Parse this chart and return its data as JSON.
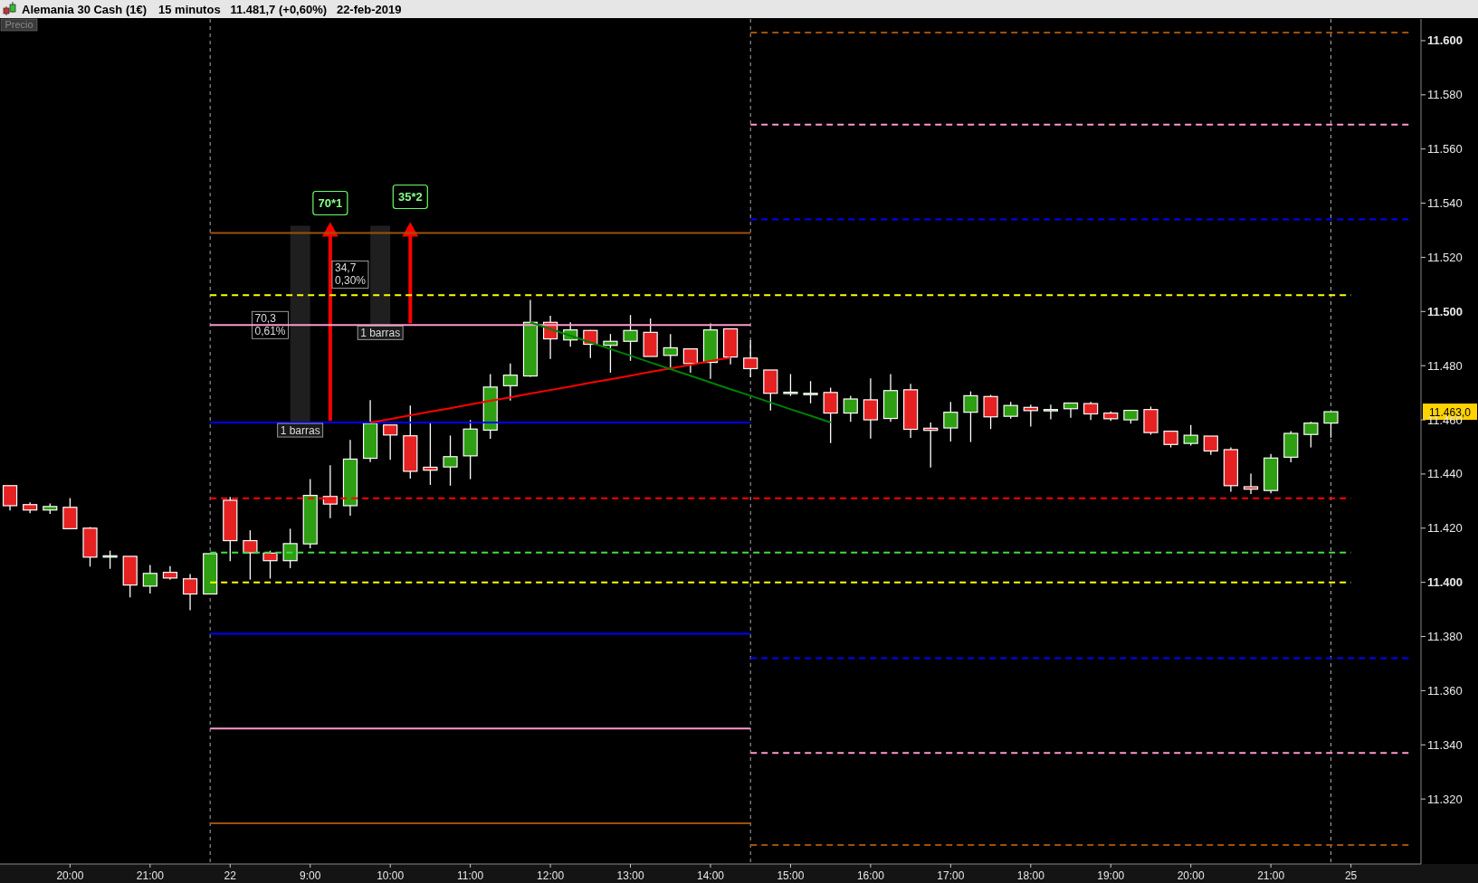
{
  "chart_data": {
    "type": "candlestick",
    "title": "Alemania 30 Cash (1€)",
    "subtitle": "15 minutos   11.481,7 (+0,60%)   22-feb-2019",
    "categories": [
      null,
      null,
      null,
      "20:00",
      null,
      null,
      null,
      "21:00",
      null,
      null,
      null,
      "22",
      null,
      null,
      null,
      "9:00",
      null,
      null,
      null,
      "10:00",
      null,
      null,
      null,
      "11:00",
      null,
      null,
      null,
      "12:00",
      null,
      null,
      null,
      "13:00",
      null,
      null,
      null,
      "14:00",
      null,
      null,
      null,
      "15:00",
      null,
      null,
      null,
      "16:00",
      null,
      null,
      null,
      "17:00",
      null,
      null,
      null,
      "18:00",
      null,
      null,
      null,
      "19:00",
      null,
      null,
      null,
      "20:00",
      null,
      null,
      null,
      "21:00",
      null,
      null,
      null,
      "25",
      null,
      null,
      null
    ],
    "ylim": [
      11296,
      11608
    ],
    "yticks": [
      {
        "value": 11320,
        "label": "11.320"
      },
      {
        "value": 11340,
        "label": "11.340"
      },
      {
        "value": 11360,
        "label": "11.360"
      },
      {
        "value": 11380,
        "label": "11.380"
      },
      {
        "value": 11400,
        "label": "11.400"
      },
      {
        "value": 11420,
        "label": "11.420"
      },
      {
        "value": 11440,
        "label": "11.440"
      },
      {
        "value": 11460,
        "label": "11.460"
      },
      {
        "value": 11480,
        "label": "11.480"
      },
      {
        "value": 11500,
        "label": "11.500"
      },
      {
        "value": 11520,
        "label": "11.520"
      },
      {
        "value": 11540,
        "label": "11.540"
      },
      {
        "value": 11560,
        "label": "11.560"
      },
      {
        "value": 11580,
        "label": "11.580"
      },
      {
        "value": 11600,
        "label": "11.600"
      }
    ],
    "series": [
      {
        "ohlc": [
          [
            11435.7,
            11435.7,
            11426.5,
            11428.3
          ],
          [
            11428.7,
            11429.5,
            11425.5,
            11426.7
          ],
          [
            11426.7,
            11429.1,
            11425.3,
            11428.0
          ],
          [
            11427.7,
            11431.1,
            11419.8,
            11419.8
          ],
          [
            11420.0,
            11420.4,
            11405.8,
            11409.3
          ],
          [
            11409.8,
            11411.7,
            11405.0,
            11409.8
          ],
          [
            11409.6,
            11409.6,
            11394.5,
            11399.0
          ],
          [
            11398.6,
            11406.4,
            11395.9,
            11403.3
          ],
          [
            11403.7,
            11406.0,
            11401.0,
            11401.6
          ],
          [
            11401.3,
            11403.1,
            11389.7,
            11395.7
          ],
          [
            11395.7,
            11410.6,
            11395.7,
            11410.6
          ],
          [
            11430.3,
            11431.5,
            11407.8,
            11415.4
          ],
          [
            11415.4,
            11419.2,
            11401.0,
            11410.9
          ],
          [
            11410.8,
            11411.7,
            11401.4,
            11408.0
          ],
          [
            11408.0,
            11419.8,
            11405.2,
            11414.3
          ],
          [
            11414.2,
            11438.1,
            11412.6,
            11432.1
          ],
          [
            11431.7,
            11443.2,
            11423.7,
            11428.9
          ],
          [
            11428.3,
            11452.6,
            11424.6,
            11445.5
          ],
          [
            11445.8,
            11467.3,
            11444.4,
            11458.7
          ],
          [
            11458.1,
            11458.1,
            11445.2,
            11454.4
          ],
          [
            11454.1,
            11465.3,
            11438.3,
            11441.0
          ],
          [
            11442.5,
            11459.3,
            11436.0,
            11441.4
          ],
          [
            11442.6,
            11454.2,
            11435.7,
            11446.4
          ],
          [
            11446.7,
            11459.9,
            11438.1,
            11456.6
          ],
          [
            11456.2,
            11476.9,
            11453.0,
            11472.1
          ],
          [
            11472.6,
            11480.8,
            11467.1,
            11476.5
          ],
          [
            11476.2,
            11504.3,
            11475.9,
            11496.0
          ],
          [
            11496.0,
            11498.4,
            11482.5,
            11489.9
          ],
          [
            11489.5,
            11496.0,
            11487.0,
            11493.2
          ],
          [
            11493.0,
            11493.2,
            11482.8,
            11487.9
          ],
          [
            11487.5,
            11491.7,
            11477.4,
            11489.0
          ],
          [
            11489.0,
            11498.7,
            11481.8,
            11493.0
          ],
          [
            11492.3,
            11497.4,
            11483.4,
            11483.4
          ],
          [
            11483.8,
            11491.7,
            11479.3,
            11486.6
          ],
          [
            11486.2,
            11486.2,
            11477.4,
            11480.8
          ],
          [
            11481.2,
            11495.6,
            11475.1,
            11493.2
          ],
          [
            11493.6,
            11493.6,
            11480.5,
            11483.2
          ],
          [
            11482.8,
            11489.4,
            11475.7,
            11478.9
          ],
          [
            11478.4,
            11478.4,
            11463.4,
            11469.8
          ],
          [
            11470.2,
            11476.9,
            11468.8,
            11470.2
          ],
          [
            11469.8,
            11474.3,
            11466.1,
            11469.8
          ],
          [
            11470.1,
            11471.9,
            11451.4,
            11462.5
          ],
          [
            11462.5,
            11468.9,
            11459.3,
            11467.7
          ],
          [
            11467.4,
            11475.3,
            11453.1,
            11460.0
          ],
          [
            11460.5,
            11476.9,
            11459.3,
            11470.8
          ],
          [
            11471.1,
            11473.3,
            11453.3,
            11456.5
          ],
          [
            11456.9,
            11459.0,
            11442.4,
            11456.1
          ],
          [
            11457.0,
            11466.6,
            11452.0,
            11462.8
          ],
          [
            11462.8,
            11470.5,
            11451.8,
            11468.9
          ],
          [
            11468.6,
            11469.2,
            11456.6,
            11461.1
          ],
          [
            11461.3,
            11466.6,
            11460.4,
            11465.3
          ],
          [
            11464.6,
            11465.6,
            11457.5,
            11463.4
          ],
          [
            11463.8,
            11465.6,
            11460.2,
            11463.8
          ],
          [
            11464.1,
            11466.2,
            11460.8,
            11466.2
          ],
          [
            11466.0,
            11466.6,
            11459.9,
            11462.2
          ],
          [
            11462.5,
            11463.1,
            11459.6,
            11460.4
          ],
          [
            11460.0,
            11463.5,
            11458.6,
            11463.5
          ],
          [
            11463.8,
            11464.9,
            11454.5,
            11455.3
          ],
          [
            11455.8,
            11455.8,
            11449.8,
            11450.9
          ],
          [
            11451.3,
            11458.1,
            11450.5,
            11454.3
          ],
          [
            11454.0,
            11454.0,
            11447.1,
            11448.5
          ],
          [
            11449.0,
            11449.8,
            11433.5,
            11435.7
          ],
          [
            11435.3,
            11440.1,
            11432.6,
            11434.4
          ],
          [
            11433.9,
            11447.4,
            11432.9,
            11445.9
          ],
          [
            11446.2,
            11455.8,
            11444.3,
            11455.0
          ],
          [
            11454.6,
            11459.3,
            11449.8,
            11458.8
          ],
          [
            11458.8,
            11463.0,
            11453.4,
            11463.0
          ],
          null,
          null,
          null,
          null
        ]
      },
      {
        "type": "line",
        "color": "#a0500a",
        "line_style": "solid",
        "values": [
          null,
          null,
          null,
          null,
          null,
          null,
          null,
          null,
          null,
          null,
          11529,
          11529,
          11529,
          11529,
          11529,
          11529,
          11529,
          11529,
          11529,
          11529,
          11529,
          11529,
          11529,
          11529,
          11529,
          11529,
          11529,
          11529,
          11529,
          11529,
          11529,
          11529,
          11529,
          11529,
          11529,
          11529,
          11529,
          11529,
          null,
          null,
          null,
          null,
          null,
          null,
          null,
          null,
          null,
          null,
          null,
          null,
          null,
          null,
          null,
          null,
          null,
          null,
          null,
          null,
          null,
          null,
          null,
          null,
          null,
          null,
          null,
          null,
          null,
          null,
          null,
          null,
          null
        ]
      },
      {
        "type": "line",
        "color": "#ff99cc",
        "line_style": "solid",
        "values": [
          null,
          null,
          null,
          null,
          null,
          null,
          null,
          null,
          null,
          null,
          11495,
          11495,
          11495,
          11495,
          11495,
          11495,
          11495,
          11495,
          11495,
          11495,
          11495,
          11495,
          11495,
          11495,
          11495,
          11495,
          11495,
          11495,
          11495,
          11495,
          11495,
          11495,
          11495,
          11495,
          11495,
          11495,
          11495,
          11495,
          null,
          null,
          null,
          null,
          null,
          null,
          null,
          null,
          null,
          null,
          null,
          null,
          null,
          null,
          null,
          null,
          null,
          null,
          null,
          null,
          null,
          null,
          null,
          null,
          null,
          null,
          null,
          null,
          null,
          null,
          null,
          null,
          null
        ]
      },
      {
        "type": "line",
        "color": "#0000ff",
        "line_style": "solid",
        "values": [
          null,
          null,
          null,
          null,
          null,
          null,
          null,
          null,
          null,
          null,
          11459,
          11459,
          11459,
          11459,
          11459,
          11459,
          11459,
          11459,
          11459,
          11459,
          11459,
          11459,
          11459,
          11459,
          11459,
          11459,
          11459,
          11459,
          11459,
          11459,
          11459,
          11459,
          11459,
          11459,
          11459,
          11459,
          11459,
          11459,
          null,
          null,
          null,
          null,
          null,
          null,
          null,
          null,
          null,
          null,
          null,
          null,
          null,
          null,
          null,
          null,
          null,
          null,
          null,
          null,
          null,
          null,
          null,
          null,
          null,
          null,
          null,
          null,
          null,
          null,
          null,
          null,
          null
        ]
      },
      {
        "type": "line",
        "color": "#0000ff",
        "line_style": "solid",
        "values": [
          null,
          null,
          null,
          null,
          null,
          null,
          null,
          null,
          null,
          null,
          11381,
          11381,
          11381,
          11381,
          11381,
          11381,
          11381,
          11381,
          11381,
          11381,
          11381,
          11381,
          11381,
          11381,
          11381,
          11381,
          11381,
          11381,
          11381,
          11381,
          11381,
          11381,
          11381,
          11381,
          11381,
          11381,
          11381,
          11381,
          null,
          null,
          null,
          null,
          null,
          null,
          null,
          null,
          null,
          null,
          null,
          null,
          null,
          null,
          null,
          null,
          null,
          null,
          null,
          null,
          null,
          null,
          null,
          null,
          null,
          null,
          null,
          null,
          null,
          null,
          null,
          null,
          null
        ]
      },
      {
        "type": "line",
        "color": "#ff99cc",
        "line_style": "solid",
        "values": [
          null,
          null,
          null,
          null,
          null,
          null,
          null,
          null,
          null,
          null,
          11346,
          11346,
          11346,
          11346,
          11346,
          11346,
          11346,
          11346,
          11346,
          11346,
          11346,
          11346,
          11346,
          11346,
          11346,
          11346,
          11346,
          11346,
          11346,
          11346,
          11346,
          11346,
          11346,
          11346,
          11346,
          11346,
          11346,
          11346,
          null,
          null,
          null,
          null,
          null,
          null,
          null,
          null,
          null,
          null,
          null,
          null,
          null,
          null,
          null,
          null,
          null,
          null,
          null,
          null,
          null,
          null,
          null,
          null,
          null,
          null,
          null,
          null,
          null,
          null,
          null,
          null,
          null
        ]
      },
      {
        "type": "line",
        "color": "#a0500a",
        "line_style": "solid",
        "values": [
          null,
          null,
          null,
          null,
          null,
          null,
          null,
          null,
          null,
          null,
          11311,
          11311,
          11311,
          11311,
          11311,
          11311,
          11311,
          11311,
          11311,
          11311,
          11311,
          11311,
          11311,
          11311,
          11311,
          11311,
          11311,
          11311,
          11311,
          11311,
          11311,
          11311,
          11311,
          11311,
          11311,
          11311,
          11311,
          11311,
          null,
          null,
          null,
          null,
          null,
          null,
          null,
          null,
          null,
          null,
          null,
          null,
          null,
          null,
          null,
          null,
          null,
          null,
          null,
          null,
          null,
          null,
          null,
          null,
          null,
          null,
          null,
          null,
          null,
          null,
          null,
          null,
          null
        ]
      },
      {
        "type": "line",
        "color": "#a0500a",
        "line_style": "dashed",
        "values": [
          null,
          null,
          null,
          null,
          null,
          null,
          null,
          null,
          null,
          null,
          null,
          null,
          null,
          null,
          null,
          null,
          null,
          null,
          null,
          null,
          null,
          null,
          null,
          null,
          null,
          null,
          null,
          null,
          null,
          null,
          null,
          null,
          null,
          null,
          null,
          null,
          null,
          11603,
          11603,
          11603,
          11603,
          11603,
          11603,
          11603,
          11603,
          11603,
          11603,
          11603,
          11603,
          11603,
          11603,
          11603,
          11603,
          11603,
          11603,
          11603,
          11603,
          11603,
          11603,
          11603,
          11603,
          11603,
          11603,
          11603,
          11603,
          11603,
          11603,
          11603,
          11603,
          11603,
          11603
        ]
      },
      {
        "type": "line",
        "color": "#ff99cc",
        "line_style": "dashed",
        "values": [
          null,
          null,
          null,
          null,
          null,
          null,
          null,
          null,
          null,
          null,
          null,
          null,
          null,
          null,
          null,
          null,
          null,
          null,
          null,
          null,
          null,
          null,
          null,
          null,
          null,
          null,
          null,
          null,
          null,
          null,
          null,
          null,
          null,
          null,
          null,
          null,
          null,
          11569,
          11569,
          11569,
          11569,
          11569,
          11569,
          11569,
          11569,
          11569,
          11569,
          11569,
          11569,
          11569,
          11569,
          11569,
          11569,
          11569,
          11569,
          11569,
          11569,
          11569,
          11569,
          11569,
          11569,
          11569,
          11569,
          11569,
          11569,
          11569,
          11569,
          11569,
          11569,
          11569,
          11569
        ]
      },
      {
        "type": "line",
        "color": "#0000ff",
        "line_style": "dashed",
        "values": [
          null,
          null,
          null,
          null,
          null,
          null,
          null,
          null,
          null,
          null,
          null,
          null,
          null,
          null,
          null,
          null,
          null,
          null,
          null,
          null,
          null,
          null,
          null,
          null,
          null,
          null,
          null,
          null,
          null,
          null,
          null,
          null,
          null,
          null,
          null,
          null,
          null,
          11534,
          11534,
          11534,
          11534,
          11534,
          11534,
          11534,
          11534,
          11534,
          11534,
          11534,
          11534,
          11534,
          11534,
          11534,
          11534,
          11534,
          11534,
          11534,
          11534,
          11534,
          11534,
          11534,
          11534,
          11534,
          11534,
          11534,
          11534,
          11534,
          11534,
          11534,
          11534,
          11534,
          11534
        ]
      },
      {
        "type": "line",
        "color": "#0000ff",
        "line_style": "dashed",
        "values": [
          null,
          null,
          null,
          null,
          null,
          null,
          null,
          null,
          null,
          null,
          null,
          null,
          null,
          null,
          null,
          null,
          null,
          null,
          null,
          null,
          null,
          null,
          null,
          null,
          null,
          null,
          null,
          null,
          null,
          null,
          null,
          null,
          null,
          null,
          null,
          null,
          null,
          11372,
          11372,
          11372,
          11372,
          11372,
          11372,
          11372,
          11372,
          11372,
          11372,
          11372,
          11372,
          11372,
          11372,
          11372,
          11372,
          11372,
          11372,
          11372,
          11372,
          11372,
          11372,
          11372,
          11372,
          11372,
          11372,
          11372,
          11372,
          11372,
          11372,
          11372,
          11372,
          11372,
          11372
        ]
      },
      {
        "type": "line",
        "color": "#ff99cc",
        "line_style": "dashed",
        "values": [
          null,
          null,
          null,
          null,
          null,
          null,
          null,
          null,
          null,
          null,
          null,
          null,
          null,
          null,
          null,
          null,
          null,
          null,
          null,
          null,
          null,
          null,
          null,
          null,
          null,
          null,
          null,
          null,
          null,
          null,
          null,
          null,
          null,
          null,
          null,
          null,
          null,
          11337,
          11337,
          11337,
          11337,
          11337,
          11337,
          11337,
          11337,
          11337,
          11337,
          11337,
          11337,
          11337,
          11337,
          11337,
          11337,
          11337,
          11337,
          11337,
          11337,
          11337,
          11337,
          11337,
          11337,
          11337,
          11337,
          11337,
          11337,
          11337,
          11337,
          11337,
          11337,
          11337,
          11337
        ]
      },
      {
        "type": "line",
        "color": "#a0500a",
        "line_style": "dashed",
        "values": [
          null,
          null,
          null,
          null,
          null,
          null,
          null,
          null,
          null,
          null,
          null,
          null,
          null,
          null,
          null,
          null,
          null,
          null,
          null,
          null,
          null,
          null,
          null,
          null,
          null,
          null,
          null,
          null,
          null,
          null,
          null,
          null,
          null,
          null,
          null,
          null,
          null,
          11303,
          11303,
          11303,
          11303,
          11303,
          11303,
          11303,
          11303,
          11303,
          11303,
          11303,
          11303,
          11303,
          11303,
          11303,
          11303,
          11303,
          11303,
          11303,
          11303,
          11303,
          11303,
          11303,
          11303,
          11303,
          11303,
          11303,
          11303,
          11303,
          11303,
          11303,
          11303,
          11303,
          11303
        ]
      },
      {
        "type": "line",
        "color": "#ffff00",
        "line_style": "dashed",
        "values": [
          null,
          null,
          null,
          null,
          null,
          null,
          null,
          null,
          null,
          null,
          11506,
          11506,
          11506,
          11506,
          11506,
          11506,
          11506,
          11506,
          11506,
          11506,
          11506,
          11506,
          11506,
          11506,
          11506,
          11506,
          11506,
          11506,
          11506,
          11506,
          11506,
          11506,
          11506,
          11506,
          11506,
          11506,
          11506,
          11506,
          11506,
          11506,
          11506,
          11506,
          11506,
          11506,
          11506,
          11506,
          11506,
          11506,
          11506,
          11506,
          11506,
          11506,
          11506,
          11506,
          11506,
          11506,
          11506,
          11506,
          11506,
          11506,
          11506,
          11506,
          11506,
          11506,
          11506,
          11506,
          11506,
          11506,
          null,
          null,
          null
        ]
      },
      {
        "type": "line",
        "color": "#ff0000",
        "line_style": "dashed",
        "values": [
          null,
          null,
          null,
          null,
          null,
          null,
          null,
          null,
          null,
          null,
          11431,
          11431,
          11431,
          11431,
          11431,
          11431,
          11431,
          11431,
          11431,
          11431,
          11431,
          11431,
          11431,
          11431,
          11431,
          11431,
          11431,
          11431,
          11431,
          11431,
          11431,
          11431,
          11431,
          11431,
          11431,
          11431,
          11431,
          11431,
          11431,
          11431,
          11431,
          11431,
          11431,
          11431,
          11431,
          11431,
          11431,
          11431,
          11431,
          11431,
          11431,
          11431,
          11431,
          11431,
          11431,
          11431,
          11431,
          11431,
          11431,
          11431,
          11431,
          11431,
          11431,
          11431,
          11431,
          11431,
          11431,
          11431,
          null,
          null,
          null
        ]
      },
      {
        "type": "line",
        "color": "#44dd44",
        "line_style": "dashed",
        "values": [
          null,
          null,
          null,
          null,
          null,
          null,
          null,
          null,
          null,
          null,
          11411,
          11411,
          11411,
          11411,
          11411,
          11411,
          11411,
          11411,
          11411,
          11411,
          11411,
          11411,
          11411,
          11411,
          11411,
          11411,
          11411,
          11411,
          11411,
          11411,
          11411,
          11411,
          11411,
          11411,
          11411,
          11411,
          11411,
          11411,
          11411,
          11411,
          11411,
          11411,
          11411,
          11411,
          11411,
          11411,
          11411,
          11411,
          11411,
          11411,
          11411,
          11411,
          11411,
          11411,
          11411,
          11411,
          11411,
          11411,
          11411,
          11411,
          11411,
          11411,
          11411,
          11411,
          11411,
          11411,
          11411,
          11411,
          null,
          null,
          null
        ]
      },
      {
        "type": "line",
        "color": "#ffff00",
        "line_style": "dashed",
        "values": [
          null,
          null,
          null,
          null,
          null,
          null,
          null,
          null,
          null,
          null,
          11400,
          11400,
          11400,
          11400,
          11400,
          11400,
          11400,
          11400,
          11400,
          11400,
          11400,
          11400,
          11400,
          11400,
          11400,
          11400,
          11400,
          11400,
          11400,
          11400,
          11400,
          11400,
          11400,
          11400,
          11400,
          11400,
          11400,
          11400,
          11400,
          11400,
          11400,
          11400,
          11400,
          11400,
          11400,
          11400,
          11400,
          11400,
          11400,
          11400,
          11400,
          11400,
          11400,
          11400,
          11400,
          11400,
          11400,
          11400,
          11400,
          11400,
          11400,
          11400,
          11400,
          11400,
          11400,
          11400,
          11400,
          11400,
          null,
          null,
          null
        ]
      },
      {
        "type": "line",
        "color": "#ff0000",
        "line_style": "solid",
        "values": [
          null,
          null,
          null,
          null,
          null,
          null,
          null,
          null,
          null,
          null,
          null,
          null,
          null,
          null,
          null,
          null,
          null,
          null,
          11459,
          11460.3,
          11461.7,
          11463,
          11464.3,
          11465.7,
          11467,
          11468.3,
          11469.7,
          11471,
          11472.3,
          11473.7,
          11475,
          11476.3,
          11477.7,
          11479,
          11480.3,
          11481.7,
          11483,
          null,
          null,
          null,
          null,
          null,
          null,
          null,
          null,
          null,
          null,
          null,
          null,
          null,
          null,
          null,
          null,
          null,
          null,
          null,
          null,
          null,
          null,
          null,
          null,
          null,
          null,
          null,
          null,
          null,
          null,
          null,
          null,
          null,
          null
        ]
      },
      {
        "type": "line",
        "color": "#008000",
        "line_style": "solid",
        "values": [
          null,
          null,
          null,
          null,
          null,
          null,
          null,
          null,
          null,
          null,
          null,
          null,
          null,
          null,
          null,
          null,
          null,
          null,
          null,
          null,
          null,
          null,
          null,
          null,
          null,
          null,
          11496,
          11493.5,
          11491.1,
          11488.6,
          11486.1,
          11483.7,
          11481.2,
          11478.7,
          11476.3,
          11473.8,
          11471.3,
          11468.9,
          11466.4,
          11463.9,
          11461.5,
          11459,
          null,
          null,
          null,
          null,
          null,
          null,
          null,
          null,
          null,
          null,
          null,
          null,
          null,
          null,
          null,
          null,
          null,
          null,
          null,
          null,
          null,
          null,
          null,
          null,
          null,
          null,
          null,
          null,
          null
        ]
      }
    ],
    "annotations": [
      "Precio",
      "70*1",
      "35*2",
      "70,3\n0,61%",
      "34,7\n0,30%",
      {
        "text": "1 barras",
        "y": 11459
      },
      {
        "text": "1 barras",
        "y": 11495
      },
      "11.463,0"
    ],
    "grid": "x"
  }
}
